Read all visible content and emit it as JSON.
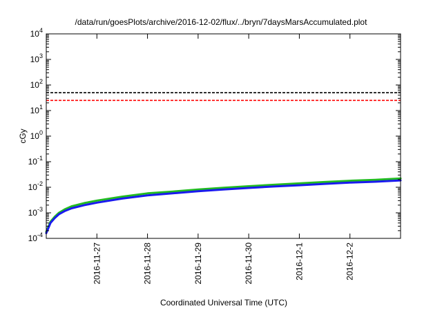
{
  "chart_data": {
    "type": "line",
    "title": "/data/run/goesPlots/archive/2016-12-02/flux/../bryn/7daysMarsAccumulated.plot",
    "xlabel": "Coordinated Universal Time (UTC)",
    "ylabel": "cGy",
    "y_scale": "log",
    "ylim_exponents": [
      -4,
      4
    ],
    "xlim": [
      "2016-11-26T00:00",
      "2016-12-03T00:00"
    ],
    "y_tick_base": "10",
    "y_tick_exponents": [
      "-4",
      "-3",
      "-2",
      "-1",
      "0",
      "1",
      "2",
      "3",
      "4"
    ],
    "x_ticks": [
      {
        "label": "2016-11-27",
        "date": "2016-11-27T00:00"
      },
      {
        "label": "2016-11-28",
        "date": "2016-11-28T00:00"
      },
      {
        "label": "2016-11-29",
        "date": "2016-11-29T00:00"
      },
      {
        "label": "2016-11-30",
        "date": "2016-11-30T00:00"
      },
      {
        "label": "2016-12-1",
        "date": "2016-12-01T00:00"
      },
      {
        "label": "2016-12-2",
        "date": "2016-12-02T00:00"
      }
    ],
    "grid": false,
    "reference_lines": [
      {
        "value": 50,
        "color": "#000000",
        "style": "dashed"
      },
      {
        "value": 25,
        "color": "#ff0000",
        "style": "dashed"
      }
    ],
    "series": [
      {
        "color": "#22bb22",
        "points": [
          [
            "2016-11-26T00:00",
            0.00018
          ],
          [
            "2016-11-26T02:00",
            0.00045
          ],
          [
            "2016-11-26T04:00",
            0.0007
          ],
          [
            "2016-11-26T06:00",
            0.001
          ],
          [
            "2016-11-26T09:00",
            0.0014
          ],
          [
            "2016-11-26T12:00",
            0.0018
          ],
          [
            "2016-11-26T18:00",
            0.0024
          ],
          [
            "2016-11-27T00:00",
            0.003
          ],
          [
            "2016-11-27T12:00",
            0.0043
          ],
          [
            "2016-11-28T00:00",
            0.0058
          ],
          [
            "2016-11-28T12:00",
            0.0068
          ],
          [
            "2016-11-29T00:00",
            0.0082
          ],
          [
            "2016-11-29T12:00",
            0.0095
          ],
          [
            "2016-11-30T00:00",
            0.011
          ],
          [
            "2016-11-30T12:00",
            0.0125
          ],
          [
            "2016-12-01T00:00",
            0.0142
          ],
          [
            "2016-12-01T12:00",
            0.016
          ],
          [
            "2016-12-02T00:00",
            0.018
          ],
          [
            "2016-12-02T12:00",
            0.0195
          ],
          [
            "2016-12-03T00:00",
            0.022
          ]
        ]
      },
      {
        "color": "#1a1aee",
        "points": [
          [
            "2016-11-26T00:00",
            0.00016
          ],
          [
            "2016-11-26T02:00",
            0.0004
          ],
          [
            "2016-11-26T04:00",
            0.00062
          ],
          [
            "2016-11-26T06:00",
            0.00088
          ],
          [
            "2016-11-26T09:00",
            0.0012
          ],
          [
            "2016-11-26T12:00",
            0.0015
          ],
          [
            "2016-11-26T18:00",
            0.002
          ],
          [
            "2016-11-27T00:00",
            0.0025
          ],
          [
            "2016-11-27T12:00",
            0.0036
          ],
          [
            "2016-11-28T00:00",
            0.0048
          ],
          [
            "2016-11-28T12:00",
            0.0058
          ],
          [
            "2016-11-29T00:00",
            0.007
          ],
          [
            "2016-11-29T12:00",
            0.0082
          ],
          [
            "2016-11-30T00:00",
            0.0094
          ],
          [
            "2016-11-30T12:00",
            0.0107
          ],
          [
            "2016-12-01T00:00",
            0.012
          ],
          [
            "2016-12-01T12:00",
            0.0136
          ],
          [
            "2016-12-02T00:00",
            0.0152
          ],
          [
            "2016-12-02T12:00",
            0.0165
          ],
          [
            "2016-12-03T00:00",
            0.0185
          ]
        ]
      }
    ]
  }
}
